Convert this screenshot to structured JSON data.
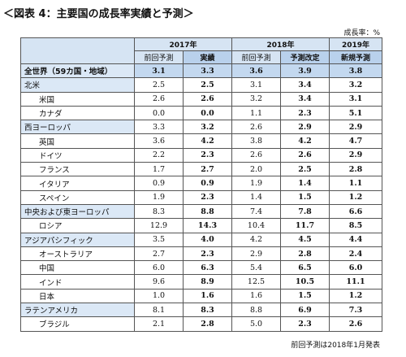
{
  "header": {
    "title": "＜図表 4：主要国の成長率実績と予測＞",
    "unit": "成長率：%"
  },
  "table": {
    "years": [
      "2017年",
      "2018年",
      "2019年"
    ],
    "columns": [
      "前回予測",
      "実績",
      "前回予測",
      "予測改定",
      "新規予測"
    ],
    "rows": [
      [
        "全世界（59カ国・地域）",
        "3.1",
        "3.3",
        "3.6",
        "3.9",
        "3.8"
      ],
      [
        "北米",
        "2.5",
        "2.5",
        "3.1",
        "3.4",
        "3.2"
      ],
      [
        "米国",
        "2.6",
        "2.6",
        "3.2",
        "3.4",
        "3.1"
      ],
      [
        "カナダ",
        "0.0",
        "0.0",
        "1.1",
        "2.3",
        "5.1"
      ],
      [
        "西ヨーロッパ",
        "3.3",
        "3.2",
        "2.6",
        "2.9",
        "2.9"
      ],
      [
        "英国",
        "3.6",
        "4.2",
        "3.8",
        "4.2",
        "4.7"
      ],
      [
        "ドイツ",
        "2.2",
        "2.3",
        "2.6",
        "2.6",
        "2.9"
      ],
      [
        "フランス",
        "1.7",
        "2.7",
        "2.0",
        "2.5",
        "2.8"
      ],
      [
        "イタリア",
        "0.9",
        "0.9",
        "1.9",
        "1.4",
        "1.1"
      ],
      [
        "スペイン",
        "1.9",
        "2.3",
        "1.4",
        "1.5",
        "1.2"
      ],
      [
        "中央および東ヨーロッパ",
        "8.3",
        "8.8",
        "7.4",
        "7.8",
        "6.6"
      ],
      [
        "ロシア",
        "12.9",
        "14.3",
        "10.4",
        "11.7",
        "8.5"
      ],
      [
        "アジアパシフィック",
        "3.5",
        "4.0",
        "4.2",
        "4.5",
        "4.4"
      ],
      [
        "オーストラリア",
        "2.7",
        "2.3",
        "2.9",
        "2.8",
        "2.4"
      ],
      [
        "中国",
        "6.0",
        "6.3",
        "5.4",
        "6.5",
        "6.0"
      ],
      [
        "インド",
        "9.6",
        "8.9",
        "12.5",
        "10.5",
        "11.1"
      ],
      [
        "日本",
        "1.0",
        "1.6",
        "1.6",
        "1.5",
        "1.2"
      ],
      [
        "ラテンアメリカ",
        "8.1",
        "8.3",
        "8.8",
        "6.9",
        "7.3"
      ],
      [
        "ブラジル",
        "2.1",
        "2.8",
        "5.0",
        "2.3",
        "2.6"
      ]
    ]
  },
  "footnote": "前回予測は2018年1月発表"
}
